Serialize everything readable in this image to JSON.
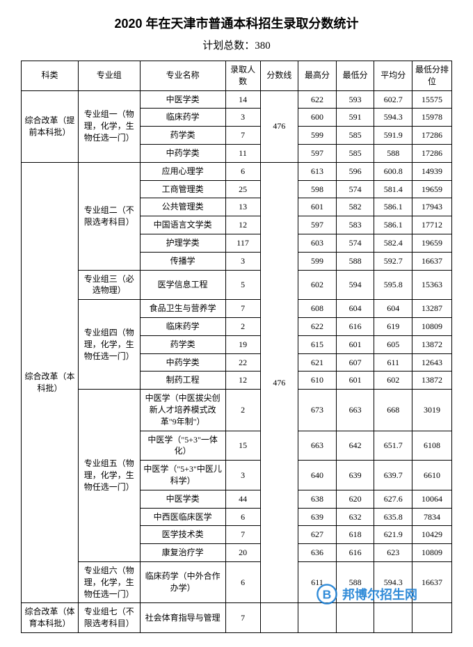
{
  "title": "2020 年在天津市普通本科招生录取分数统计",
  "subtitle": "计划总数：380",
  "columns": [
    "科类",
    "专业组",
    "专业名称",
    "录取人数",
    "分数线",
    "最高分",
    "最低分",
    "平均分",
    "最低分排位"
  ],
  "sections": [
    {
      "category": "综合改革（提前本科批）",
      "groups": [
        {
          "name": "专业组一（物理，化学，生物任选一门）",
          "scoreline": "476",
          "rows": [
            {
              "major": "中医学类",
              "count": "14",
              "high": "622",
              "low": "593",
              "avg": "602.7",
              "rank": "15575"
            },
            {
              "major": "临床药学",
              "count": "3",
              "high": "600",
              "low": "591",
              "avg": "594.3",
              "rank": "15978"
            },
            {
              "major": "药学类",
              "count": "7",
              "high": "599",
              "low": "585",
              "avg": "591.9",
              "rank": "17286"
            },
            {
              "major": "中药学类",
              "count": "11",
              "high": "597",
              "low": "585",
              "avg": "588",
              "rank": "17286"
            }
          ]
        }
      ]
    },
    {
      "category": "综合改革（本科批）",
      "scoreline": "476",
      "groups": [
        {
          "name": "专业组二（不限选考科目）",
          "rows": [
            {
              "major": "应用心理学",
              "count": "6",
              "high": "613",
              "low": "596",
              "avg": "600.8",
              "rank": "14939"
            },
            {
              "major": "工商管理类",
              "count": "25",
              "high": "598",
              "low": "574",
              "avg": "581.4",
              "rank": "19659"
            },
            {
              "major": "公共管理类",
              "count": "13",
              "high": "601",
              "low": "582",
              "avg": "586.1",
              "rank": "17943"
            },
            {
              "major": "中国语言文学类",
              "count": "12",
              "high": "597",
              "low": "583",
              "avg": "586.1",
              "rank": "17712"
            },
            {
              "major": "护理学类",
              "count": "117",
              "high": "603",
              "low": "574",
              "avg": "582.4",
              "rank": "19659"
            },
            {
              "major": "传播学",
              "count": "3",
              "high": "599",
              "low": "588",
              "avg": "592.7",
              "rank": "16637"
            }
          ]
        },
        {
          "name": "专业组三（必选物理）",
          "rows": [
            {
              "major": "医学信息工程",
              "count": "5",
              "high": "602",
              "low": "594",
              "avg": "595.8",
              "rank": "15363"
            }
          ]
        },
        {
          "name": "专业组四（物理，化学，生物任选一门）",
          "rows": [
            {
              "major": "食品卫生与营养学",
              "count": "7",
              "high": "608",
              "low": "604",
              "avg": "604",
              "rank": "13287"
            },
            {
              "major": "临床药学",
              "count": "2",
              "high": "622",
              "low": "616",
              "avg": "619",
              "rank": "10809"
            },
            {
              "major": "药学类",
              "count": "19",
              "high": "615",
              "low": "601",
              "avg": "605",
              "rank": "13872"
            },
            {
              "major": "中药学类",
              "count": "22",
              "high": "621",
              "low": "607",
              "avg": "611",
              "rank": "12643"
            },
            {
              "major": "制药工程",
              "count": "12",
              "high": "610",
              "low": "601",
              "avg": "602",
              "rank": "13872"
            }
          ]
        },
        {
          "name": "专业组五（物理，化学，生物任选一门）",
          "rows": [
            {
              "major": "中医学（中医拔尖创新人才培养模式改革\"9年制\"）",
              "count": "2",
              "high": "673",
              "low": "663",
              "avg": "668",
              "rank": "3019"
            },
            {
              "major": "中医学（\"5+3\"一体化）",
              "count": "15",
              "high": "663",
              "low": "642",
              "avg": "651.7",
              "rank": "6108"
            },
            {
              "major": "中医学（\"5+3\"中医儿科学）",
              "count": "3",
              "high": "640",
              "low": "639",
              "avg": "639.7",
              "rank": "6610"
            },
            {
              "major": "中医学类",
              "count": "44",
              "high": "638",
              "low": "620",
              "avg": "627.6",
              "rank": "10064"
            },
            {
              "major": "中西医临床医学",
              "count": "6",
              "high": "639",
              "low": "632",
              "avg": "635.8",
              "rank": "7834"
            },
            {
              "major": "医学技术类",
              "count": "7",
              "high": "627",
              "low": "618",
              "avg": "621.9",
              "rank": "10429"
            },
            {
              "major": "康复治疗学",
              "count": "20",
              "high": "636",
              "low": "616",
              "avg": "623",
              "rank": "10809"
            }
          ]
        },
        {
          "name": "专业组六（物理，化学，生物任选一门）",
          "rows": [
            {
              "major": "临床药学（中外合作办学）",
              "count": "6",
              "high": "611",
              "low": "588",
              "avg": "594.3",
              "rank": "16637"
            }
          ]
        }
      ]
    },
    {
      "category": "综合改革（体育本科批）",
      "groups": [
        {
          "name": "专业组七（不限选考科目）",
          "rows": [
            {
              "major": "社会体育指导与管理",
              "count": "7",
              "high": "",
              "low": "",
              "avg": "",
              "rank": ""
            }
          ]
        }
      ]
    }
  ],
  "watermark": "邦博尔招生网",
  "style": {
    "border_color": "#000000",
    "background_color": "#ffffff",
    "text_color": "#000000",
    "watermark_color": "#1a7fd4",
    "title_fontsize": 18,
    "subtitle_fontsize": 15,
    "cell_fontsize": 12
  }
}
